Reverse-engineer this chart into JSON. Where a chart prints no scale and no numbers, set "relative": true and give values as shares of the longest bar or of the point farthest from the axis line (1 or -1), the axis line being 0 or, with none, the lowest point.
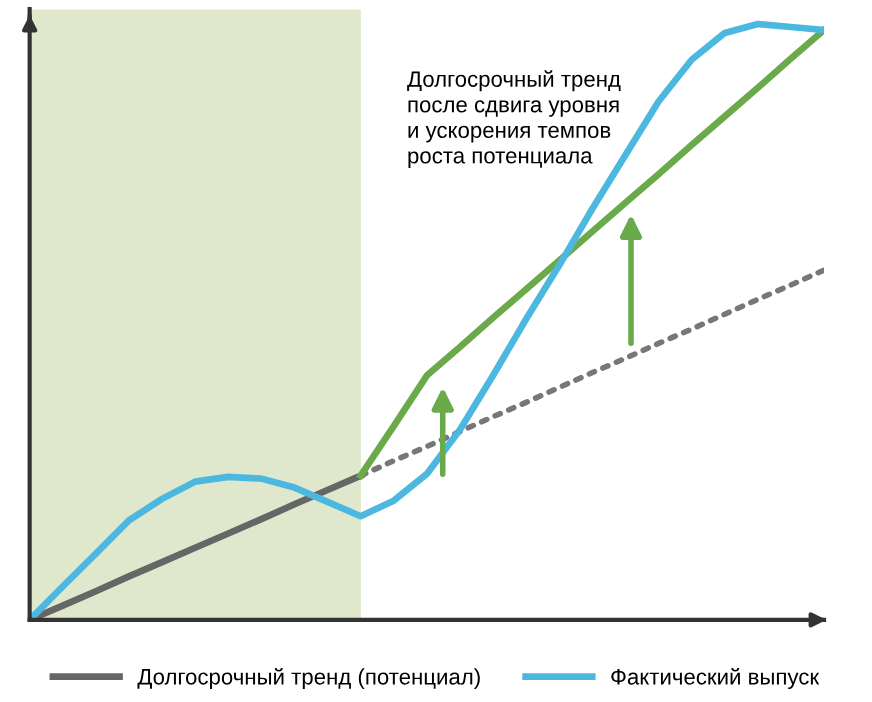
{
  "chart_data": {
    "type": "line",
    "relative": true,
    "legend": "bottom",
    "categories": [
      null,
      null,
      null,
      null,
      null,
      null,
      null,
      null,
      null,
      null,
      null,
      null,
      null,
      null,
      null,
      null,
      null,
      null,
      null,
      null,
      null,
      null,
      null,
      null,
      null
    ],
    "series": [
      {
        "name": "Долгосрочный тренд (потенциал)",
        "color": "#666666",
        "line_style": "solid",
        "values": [
          0,
          0.024,
          0.048,
          0.073,
          0.097,
          0.121,
          0.145,
          0.169,
          0.194,
          0.218,
          0.242,
          null,
          null,
          null,
          null,
          null,
          null,
          null,
          null,
          null,
          null,
          null,
          null,
          null,
          null
        ]
      },
      {
        "color": "#777777",
        "line_style": "dotted",
        "values": [
          null,
          null,
          null,
          null,
          null,
          null,
          null,
          null,
          null,
          null,
          0.242,
          0.267,
          0.291,
          0.316,
          0.341,
          0.365,
          0.39,
          0.415,
          0.439,
          0.464,
          0.488,
          0.513,
          0.538,
          0.562,
          0.587
        ]
      },
      {
        "color": "#6aaa4a",
        "line_style": "solid",
        "values": [
          null,
          null,
          null,
          null,
          null,
          null,
          null,
          null,
          null,
          null,
          0.242,
          0.325,
          0.41,
          0.458,
          0.507,
          0.555,
          0.603,
          0.652,
          0.7,
          0.748,
          0.797,
          0.845,
          0.893,
          0.942,
          0.99
        ]
      },
      {
        "name": "Фактический выпуск",
        "color": "#4cb8e0",
        "line_style": "solid",
        "values": [
          0,
          0.056,
          0.111,
          0.167,
          0.203,
          0.232,
          0.24,
          0.237,
          0.222,
          0.198,
          0.174,
          0.2,
          0.245,
          0.319,
          0.41,
          0.505,
          0.595,
          0.69,
          0.78,
          0.87,
          0.94,
          0.985,
          1.0,
          0.995,
          0.99
        ]
      }
    ],
    "annotations": [
      "Долгосрочный тренд\nпосле сдвига уровня\nи ускорения темпов\nроста потенциала"
    ]
  }
}
